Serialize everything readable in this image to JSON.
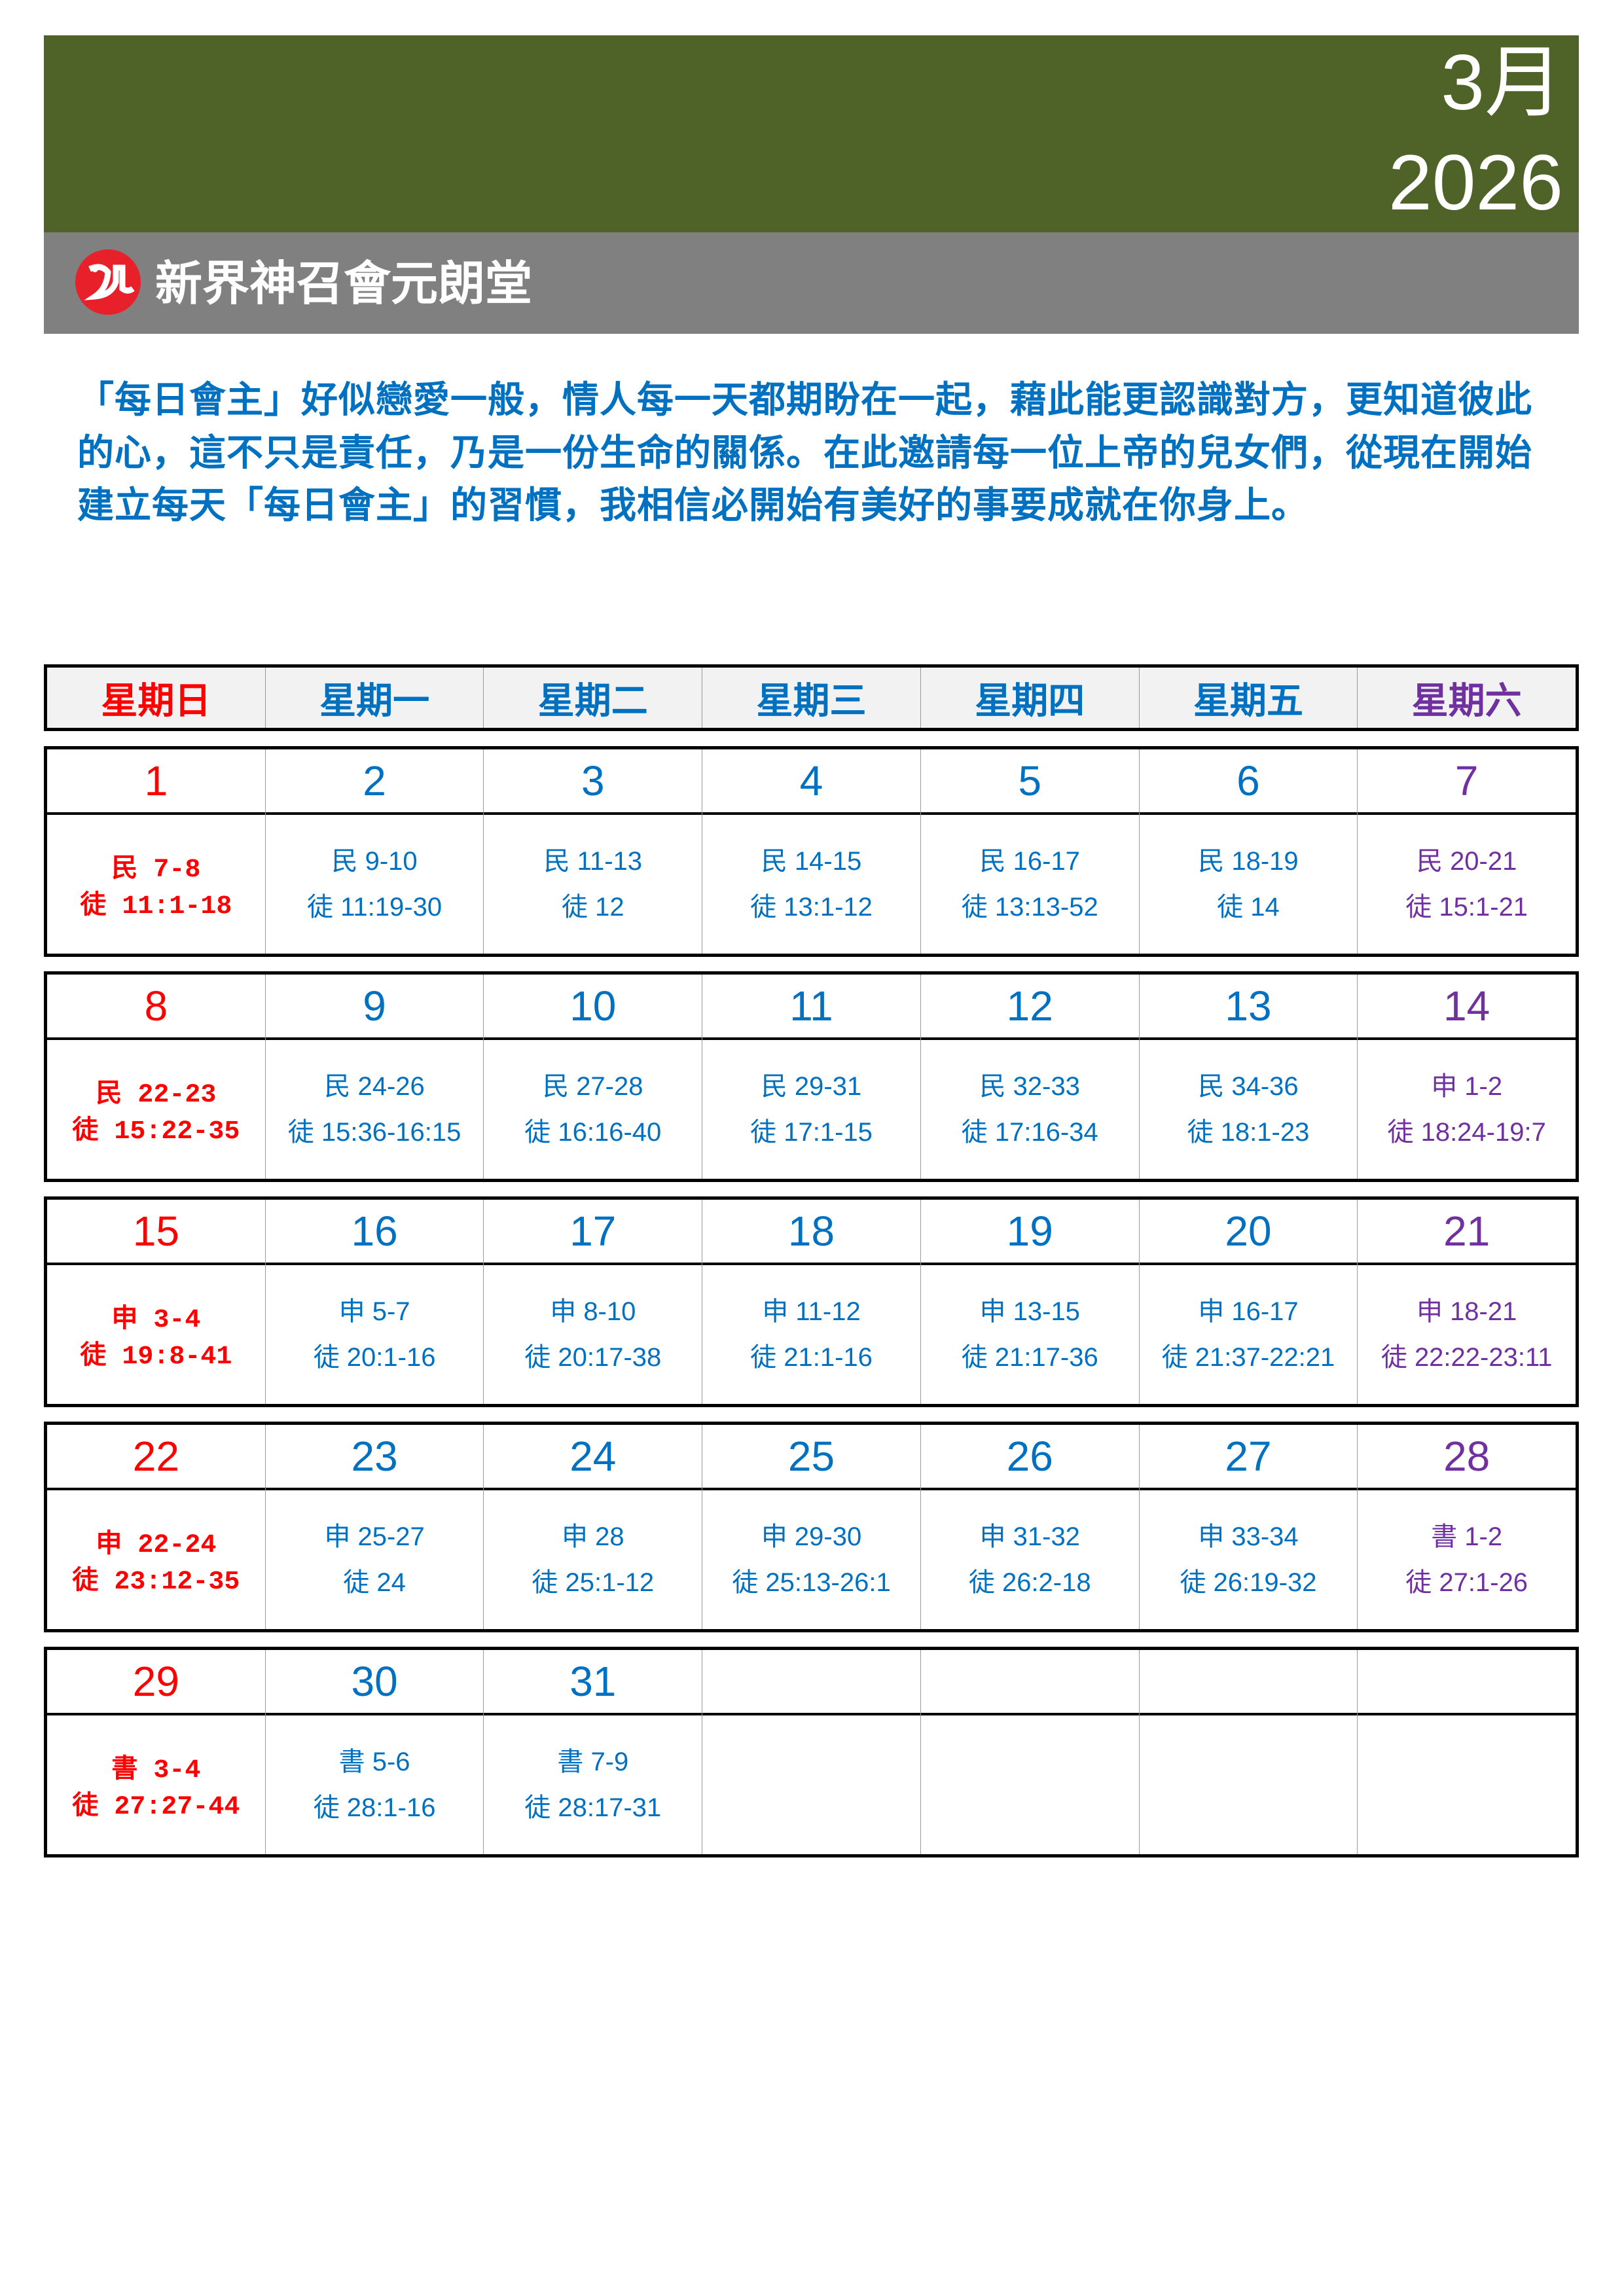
{
  "header": {
    "month": "3月",
    "year": "2026",
    "church_name": "新界神召會元朗堂"
  },
  "colors": {
    "banner": "#4f6228",
    "subbar": "#808080",
    "sunday": "#ff0000",
    "weekday": "#0070c0",
    "saturday": "#7030a0"
  },
  "intro": "「每日會主」好似戀愛一般，情人每一天都期盼在一起，藉此能更認識對方，更知道彼此的心，這不只是責任，乃是一份生命的關係。在此邀請每一位上帝的兒女們，從現在開始建立每天「每日會主」的習慣，我相信必開始有美好的事要成就在你身上。",
  "weekdays": [
    "星期日",
    "星期一",
    "星期二",
    "星期三",
    "星期四",
    "星期五",
    "星期六"
  ],
  "weeks": [
    [
      {
        "d": "1",
        "r": [
          "民 7-8",
          "徒 11:1-18"
        ]
      },
      {
        "d": "2",
        "r": [
          "民 9-10",
          "徒 11:19-30"
        ]
      },
      {
        "d": "3",
        "r": [
          "民 11-13",
          "徒 12"
        ]
      },
      {
        "d": "4",
        "r": [
          "民 14-15",
          "徒 13:1-12"
        ]
      },
      {
        "d": "5",
        "r": [
          "民 16-17",
          "徒 13:13-52"
        ]
      },
      {
        "d": "6",
        "r": [
          "民 18-19",
          "徒 14"
        ]
      },
      {
        "d": "7",
        "r": [
          "民 20-21",
          "徒 15:1-21"
        ]
      }
    ],
    [
      {
        "d": "8",
        "r": [
          "民 22-23",
          "徒 15:22-35"
        ]
      },
      {
        "d": "9",
        "r": [
          "民 24-26",
          "徒 15:36-16:15"
        ]
      },
      {
        "d": "10",
        "r": [
          "民 27-28",
          "徒 16:16-40"
        ]
      },
      {
        "d": "11",
        "r": [
          "民 29-31",
          "徒 17:1-15"
        ]
      },
      {
        "d": "12",
        "r": [
          "民 32-33",
          "徒 17:16-34"
        ]
      },
      {
        "d": "13",
        "r": [
          "民 34-36",
          "徒 18:1-23"
        ]
      },
      {
        "d": "14",
        "r": [
          "申 1-2",
          "徒 18:24-19:7"
        ]
      }
    ],
    [
      {
        "d": "15",
        "r": [
          "申 3-4",
          "徒 19:8-41"
        ]
      },
      {
        "d": "16",
        "r": [
          "申 5-7",
          "徒 20:1-16"
        ]
      },
      {
        "d": "17",
        "r": [
          "申 8-10",
          "徒 20:17-38"
        ]
      },
      {
        "d": "18",
        "r": [
          "申 11-12",
          "徒 21:1-16"
        ]
      },
      {
        "d": "19",
        "r": [
          "申 13-15",
          "徒 21:17-36"
        ]
      },
      {
        "d": "20",
        "r": [
          "申 16-17",
          "徒 21:37-22:21"
        ]
      },
      {
        "d": "21",
        "r": [
          "申 18-21",
          "徒 22:22-23:11"
        ]
      }
    ],
    [
      {
        "d": "22",
        "r": [
          "申 22-24",
          "徒 23:12-35"
        ]
      },
      {
        "d": "23",
        "r": [
          "申 25-27",
          "徒 24"
        ]
      },
      {
        "d": "24",
        "r": [
          "申 28",
          "徒 25:1-12"
        ]
      },
      {
        "d": "25",
        "r": [
          "申 29-30",
          "徒 25:13-26:1"
        ]
      },
      {
        "d": "26",
        "r": [
          "申 31-32",
          "徒 26:2-18"
        ]
      },
      {
        "d": "27",
        "r": [
          "申 33-34",
          "徒 26:19-32"
        ]
      },
      {
        "d": "28",
        "r": [
          "書 1-2",
          "徒 27:1-26"
        ]
      }
    ],
    [
      {
        "d": "29",
        "r": [
          "書 3-4",
          "徒 27:27-44"
        ]
      },
      {
        "d": "30",
        "r": [
          "書 5-6",
          "徒 28:1-16"
        ]
      },
      {
        "d": "31",
        "r": [
          "書 7-9",
          "徒 28:17-31"
        ]
      },
      {
        "d": "",
        "r": []
      },
      {
        "d": "",
        "r": []
      },
      {
        "d": "",
        "r": []
      },
      {
        "d": "",
        "r": []
      }
    ]
  ]
}
